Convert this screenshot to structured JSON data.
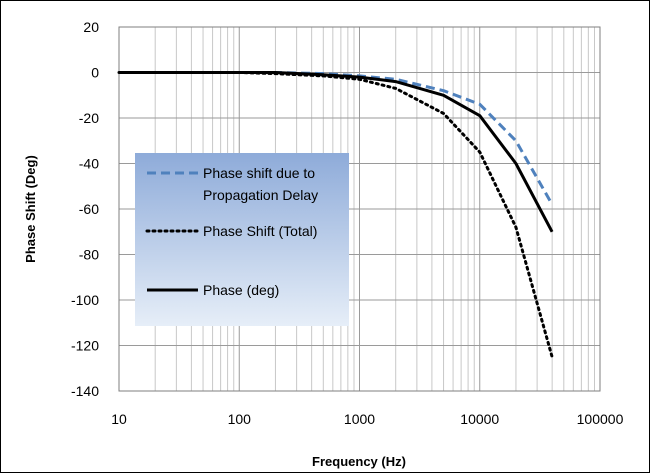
{
  "chart_data": {
    "type": "line",
    "title": "",
    "xlabel": "Frequency (Hz)",
    "ylabel": "Phase Shift (Deg)",
    "xscale": "log",
    "xlim": [
      10,
      100000
    ],
    "ylim": [
      -140,
      20
    ],
    "xticks": [
      "10",
      "100",
      "1000",
      "10000",
      "100000"
    ],
    "yticks": [
      "20",
      "0",
      "-20",
      "-40",
      "-60",
      "-80",
      "-100",
      "-120",
      "-140"
    ],
    "grid": {
      "x_major": true,
      "x_minor": true,
      "y_major": true
    },
    "legend_position": "left",
    "series": [
      {
        "name": "Phase shift due to Propagation Delay",
        "label_lines": [
          "Phase shift due to",
          "Propagation Delay"
        ],
        "style": "dashed",
        "color": "#4f81bd",
        "x": [
          10,
          100,
          200,
          500,
          1000,
          2000,
          5000,
          10000,
          20000,
          40000
        ],
        "y": [
          0,
          0,
          0,
          -0.5,
          -1.5,
          -3,
          -8,
          -14,
          -30,
          -58
        ]
      },
      {
        "name": "Phase Shift (Total)",
        "label_lines": [
          "Phase Shift (Total)"
        ],
        "style": "dotted",
        "color": "#000000",
        "x": [
          10,
          100,
          200,
          500,
          1000,
          2000,
          5000,
          10000,
          20000,
          40000
        ],
        "y": [
          0,
          0,
          -0.5,
          -1.5,
          -3,
          -7,
          -18,
          -35,
          -68,
          -125
        ]
      },
      {
        "name": "Phase (deg)",
        "label_lines": [
          "Phase (deg)"
        ],
        "style": "solid",
        "color": "#000000",
        "x": [
          10,
          100,
          200,
          500,
          1000,
          2000,
          5000,
          10000,
          20000,
          40000
        ],
        "y": [
          0,
          0,
          0,
          -1,
          -2,
          -4,
          -10,
          -19,
          -40,
          -70
        ]
      }
    ]
  }
}
